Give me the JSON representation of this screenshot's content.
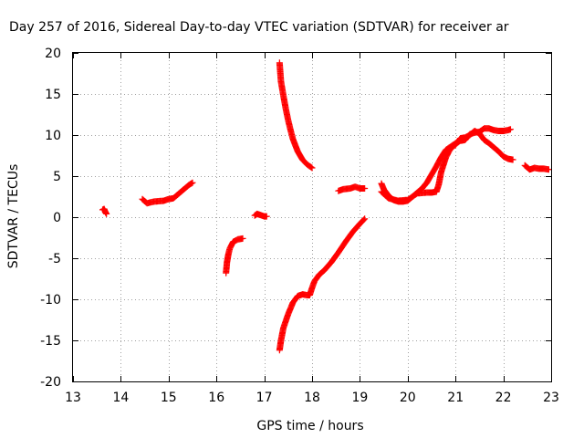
{
  "chart_data": {
    "type": "scatter",
    "title": "Day 257 of 2016, Sidereal Day-to-day VTEC variation (SDTVAR) for receiver ar",
    "xlabel": "GPS time / hours",
    "ylabel": "SDTVAR / TECUs",
    "xlim": [
      13,
      23
    ],
    "ylim": [
      -20,
      20
    ],
    "x_ticks": [
      "13",
      "14",
      "15",
      "16",
      "17",
      "18",
      "19",
      "20",
      "21",
      "22",
      "23"
    ],
    "y_ticks": [
      "-20",
      "-15",
      "-10",
      "-5",
      "0",
      "5",
      "10",
      "15",
      "20"
    ],
    "grid": true,
    "marker": "plus",
    "series_color": "#ff0000",
    "segments": [
      {
        "points": [
          [
            13.62,
            0.9
          ],
          [
            13.65,
            1.0
          ],
          [
            13.68,
            0.6
          ],
          [
            13.7,
            0.4
          ]
        ]
      },
      {
        "points": [
          [
            14.45,
            2.2
          ],
          [
            14.55,
            1.7
          ],
          [
            14.7,
            1.9
          ],
          [
            14.9,
            2.0
          ],
          [
            15.0,
            2.2
          ],
          [
            15.1,
            2.3
          ],
          [
            15.2,
            2.8
          ],
          [
            15.3,
            3.3
          ],
          [
            15.42,
            3.9
          ],
          [
            15.5,
            4.2
          ]
        ]
      },
      {
        "points": [
          [
            16.2,
            -6.8
          ],
          [
            16.22,
            -5.5
          ],
          [
            16.25,
            -4.5
          ],
          [
            16.28,
            -3.8
          ],
          [
            16.35,
            -3.0
          ],
          [
            16.45,
            -2.7
          ],
          [
            16.55,
            -2.6
          ]
        ]
      },
      {
        "points": [
          [
            16.8,
            0.2
          ],
          [
            16.85,
            0.4
          ],
          [
            16.9,
            0.3
          ],
          [
            17.0,
            0.1
          ],
          [
            17.05,
            0.1
          ]
        ]
      },
      {
        "points": [
          [
            17.32,
            18.8
          ],
          [
            17.35,
            16.5
          ],
          [
            17.4,
            14.8
          ],
          [
            17.45,
            13.2
          ],
          [
            17.5,
            11.8
          ],
          [
            17.55,
            10.6
          ],
          [
            17.6,
            9.5
          ],
          [
            17.7,
            8.0
          ],
          [
            17.8,
            7.0
          ],
          [
            17.9,
            6.4
          ],
          [
            18.0,
            6.0
          ]
        ]
      },
      {
        "points": [
          [
            17.32,
            -16.2
          ],
          [
            17.35,
            -15.0
          ],
          [
            17.4,
            -13.5
          ],
          [
            17.5,
            -11.8
          ],
          [
            17.6,
            -10.4
          ],
          [
            17.7,
            -9.6
          ],
          [
            17.8,
            -9.4
          ],
          [
            17.9,
            -9.5
          ],
          [
            17.95,
            -9.5
          ],
          [
            18.0,
            -8.6
          ],
          [
            18.05,
            -7.8
          ],
          [
            18.15,
            -7.0
          ],
          [
            18.25,
            -6.5
          ],
          [
            18.4,
            -5.5
          ],
          [
            18.55,
            -4.3
          ],
          [
            18.7,
            -3.0
          ],
          [
            18.85,
            -1.8
          ],
          [
            19.0,
            -0.8
          ],
          [
            19.1,
            -0.2
          ]
        ]
      },
      {
        "points": [
          [
            18.55,
            3.2
          ],
          [
            18.65,
            3.4
          ],
          [
            18.8,
            3.5
          ],
          [
            18.9,
            3.7
          ],
          [
            19.0,
            3.5
          ],
          [
            19.1,
            3.5
          ]
        ]
      },
      {
        "points": [
          [
            19.45,
            4.1
          ],
          [
            19.5,
            3.4
          ],
          [
            19.6,
            2.6
          ],
          [
            19.7,
            2.1
          ],
          [
            19.8,
            1.9
          ],
          [
            19.9,
            1.9
          ],
          [
            20.0,
            2.0
          ],
          [
            20.1,
            2.5
          ],
          [
            20.2,
            3.0
          ],
          [
            20.3,
            3.5
          ],
          [
            20.4,
            4.2
          ],
          [
            20.5,
            5.2
          ],
          [
            20.6,
            6.2
          ],
          [
            20.7,
            7.3
          ],
          [
            20.8,
            8.2
          ],
          [
            20.9,
            8.6
          ],
          [
            21.0,
            9.0
          ],
          [
            21.1,
            9.3
          ],
          [
            21.2,
            9.4
          ],
          [
            21.3,
            10.1
          ],
          [
            21.4,
            10.3
          ],
          [
            21.5,
            10.4
          ],
          [
            21.6,
            10.8
          ],
          [
            21.7,
            10.8
          ],
          [
            21.8,
            10.6
          ],
          [
            21.9,
            10.5
          ],
          [
            22.0,
            10.5
          ],
          [
            22.1,
            10.6
          ],
          [
            22.15,
            10.7
          ]
        ]
      },
      {
        "points": [
          [
            19.45,
            3.1
          ],
          [
            19.6,
            2.3
          ],
          [
            19.8,
            2.0
          ],
          [
            20.0,
            2.1
          ],
          [
            20.2,
            2.9
          ],
          [
            20.4,
            3.0
          ],
          [
            20.5,
            3.0
          ],
          [
            20.6,
            3.1
          ],
          [
            20.65,
            4.0
          ],
          [
            20.7,
            5.5
          ],
          [
            20.8,
            7.3
          ],
          [
            20.9,
            8.4
          ],
          [
            21.0,
            8.8
          ],
          [
            21.1,
            9.6
          ],
          [
            21.2,
            9.7
          ],
          [
            21.3,
            10.0
          ],
          [
            21.4,
            10.5
          ],
          [
            21.5,
            10.2
          ],
          [
            21.6,
            9.4
          ],
          [
            21.7,
            9.0
          ],
          [
            21.8,
            8.5
          ],
          [
            21.9,
            8.0
          ],
          [
            22.0,
            7.4
          ],
          [
            22.1,
            7.1
          ],
          [
            22.2,
            7.0
          ]
        ]
      },
      {
        "points": [
          [
            22.45,
            6.3
          ],
          [
            22.55,
            5.8
          ],
          [
            22.65,
            6.0
          ],
          [
            22.75,
            5.9
          ],
          [
            22.85,
            5.9
          ],
          [
            22.95,
            5.8
          ]
        ]
      }
    ]
  }
}
